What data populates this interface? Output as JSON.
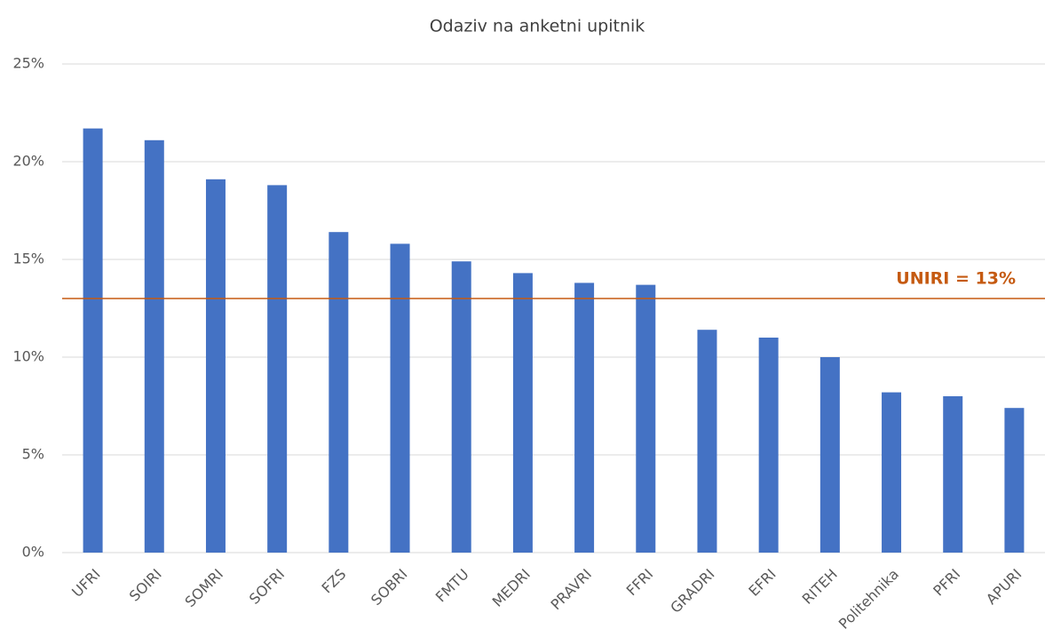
{
  "chart_data": {
    "type": "bar",
    "title": "Odaziv na anketni upitnik",
    "categories": [
      "UFRI",
      "SOIRI",
      "SOMRI",
      "SOFRI",
      "FZS",
      "SOBRI",
      "FMTU",
      "MEDRI",
      "PRAVRI",
      "FFRI",
      "GRADRI",
      "EFRI",
      "RITEH",
      "Politehnika",
      "PFRI",
      "APURI"
    ],
    "values": [
      21.7,
      21.1,
      19.1,
      18.8,
      16.4,
      15.8,
      14.9,
      14.3,
      13.8,
      13.7,
      11.4,
      11.0,
      10.0,
      8.2,
      8.0,
      7.4
    ],
    "color": "#4472c4",
    "ylim": [
      0,
      25
    ],
    "yticks": [
      {
        "value": 0,
        "label": "0%"
      },
      {
        "value": 5,
        "label": "5%"
      },
      {
        "value": 10,
        "label": "10%"
      },
      {
        "value": 15,
        "label": "15%"
      },
      {
        "value": 20,
        "label": "20%"
      },
      {
        "value": 25,
        "label": "25%"
      }
    ],
    "grid": true,
    "reference_line": {
      "value": 13,
      "label": "UNIRI = 13%",
      "color": "#c55a11"
    }
  }
}
